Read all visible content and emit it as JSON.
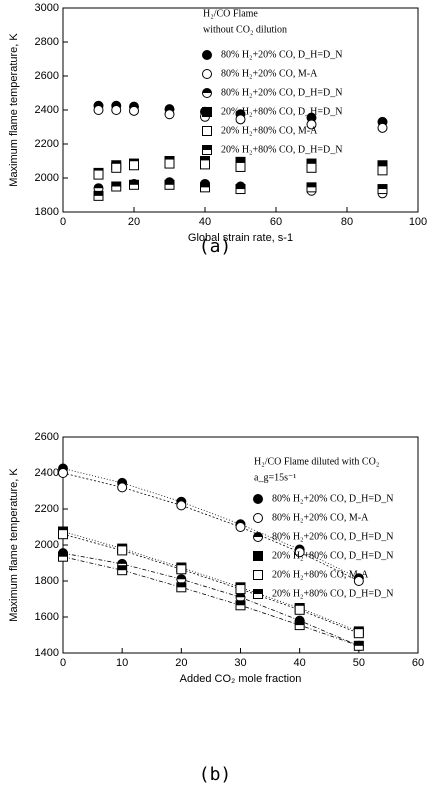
{
  "chart_data": [
    {
      "type": "scatter",
      "caption": "(a)",
      "legend_title": [
        "H₂/CO Flame",
        "without CO₂ dilution"
      ],
      "xlabel": "Global strain rate, s-1",
      "ylabel": "Maximum flame temperature, K",
      "xlim": [
        0,
        100
      ],
      "xticks": [
        0,
        20,
        40,
        60,
        80,
        100
      ],
      "ylim": [
        1800,
        3000
      ],
      "yticks": [
        1800,
        2000,
        2200,
        2400,
        2600,
        2800,
        3000
      ],
      "line": false,
      "legend": "upper right",
      "x": [
        10,
        15,
        20,
        30,
        40,
        50,
        70,
        90
      ],
      "series": [
        {
          "name": "80% H₂+20% CO, D_H=D_N",
          "color": "#000000",
          "marker": "circle",
          "fill": "full",
          "values": [
            2425,
            2425,
            2420,
            2405,
            2390,
            2375,
            2355,
            2330
          ]
        },
        {
          "name": "80% H₂+20% CO, M-A",
          "color": "#000000",
          "marker": "circle",
          "fill": "none",
          "values": [
            2400,
            2400,
            2395,
            2375,
            2360,
            2345,
            2315,
            2295
          ]
        },
        {
          "name": "80% H₂+20% CO, D_H=D_N",
          "color": "#000000",
          "marker": "circle",
          "fill": "half",
          "values": [
            1940,
            1950,
            1965,
            1975,
            1965,
            1950,
            1925,
            1910
          ]
        },
        {
          "name": "20% H₂+80% CO, D_H=D_N",
          "color": "#000000",
          "marker": "square",
          "fill": "full",
          "values": [
            2030,
            2075,
            2085,
            2100,
            2100,
            2095,
            2085,
            2075
          ]
        },
        {
          "name": "20% H₂+80% CO, M-A",
          "color": "#000000",
          "marker": "square",
          "fill": "none",
          "values": [
            2020,
            2060,
            2075,
            2085,
            2080,
            2065,
            2060,
            2045
          ]
        },
        {
          "name": "20% H₂+80% CO, D_H=D_N",
          "color": "#000000",
          "marker": "square",
          "fill": "half",
          "values": [
            1895,
            1950,
            1960,
            1960,
            1945,
            1935,
            1945,
            1935
          ]
        }
      ]
    },
    {
      "type": "scatter",
      "caption": "(b)",
      "legend_title": [
        "H₂/CO Flame diluted with CO₂",
        "a_g=15s⁻¹"
      ],
      "xlabel": "Added CO₂ mole fraction",
      "ylabel": "Maximum flame temperature, K",
      "xlim": [
        0,
        60
      ],
      "xticks": [
        0,
        10,
        20,
        30,
        40,
        50,
        60
      ],
      "ylim": [
        1400,
        2600
      ],
      "yticks": [
        1400,
        1600,
        1800,
        2000,
        2200,
        2400,
        2600
      ],
      "line": true,
      "legend": "upper right",
      "x": [
        0,
        10,
        20,
        30,
        40,
        50
      ],
      "series": [
        {
          "name": "80% H₂+20% CO, D_H=D_N",
          "color": "#000000",
          "marker": "circle",
          "fill": "full",
          "values": [
            2425,
            2345,
            2240,
            2115,
            1975,
            1815
          ]
        },
        {
          "name": "80% H₂+20% CO, M-A",
          "color": "#000000",
          "marker": "circle",
          "fill": "none",
          "values": [
            2400,
            2320,
            2220,
            2100,
            1960,
            1800
          ]
        },
        {
          "name": "80% H₂+20% CO, D_H=D_N",
          "color": "#000000",
          "marker": "circle",
          "fill": "half",
          "values": [
            1955,
            1895,
            1810,
            1710,
            1580,
            1440
          ]
        },
        {
          "name": "20% H₂+80% CO, D_H=D_N",
          "color": "#000000",
          "marker": "square",
          "fill": "full",
          "values": [
            2075,
            1980,
            1875,
            1765,
            1650,
            1520
          ]
        },
        {
          "name": "20% H₂+80% CO, M-A",
          "color": "#000000",
          "marker": "square",
          "fill": "none",
          "values": [
            2060,
            1970,
            1865,
            1755,
            1640,
            1510
          ]
        },
        {
          "name": "20% H₂+80% CO, D_H=D_N",
          "color": "#000000",
          "marker": "square",
          "fill": "half",
          "values": [
            1935,
            1860,
            1765,
            1665,
            1555,
            1440
          ]
        }
      ]
    }
  ]
}
